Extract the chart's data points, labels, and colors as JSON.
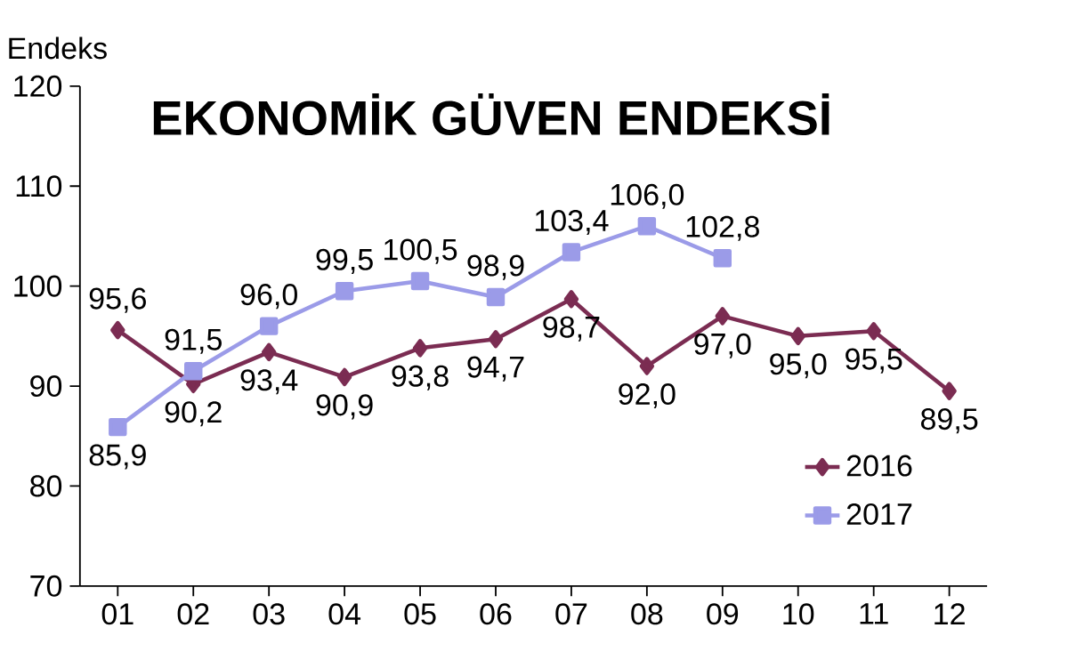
{
  "chart_data": {
    "type": "line",
    "title": "EKONOMİK GÜVEN ENDEKSİ",
    "ylabel": "Endeks",
    "categories": [
      "01",
      "02",
      "03",
      "04",
      "05",
      "06",
      "07",
      "08",
      "09",
      "10",
      "11",
      "12"
    ],
    "series": [
      {
        "name": "2016",
        "color": "#7b2c52",
        "marker": "diamond",
        "values": [
          95.6,
          90.2,
          93.4,
          90.9,
          93.8,
          94.7,
          98.7,
          92.0,
          97.0,
          95.0,
          95.5,
          89.5
        ],
        "value_labels": [
          "95,6",
          "90,2",
          "93,4",
          "90,9",
          "93,8",
          "94,7",
          "98,7",
          "92,0",
          "97,0",
          "95,0",
          "95,5",
          "89,5"
        ]
      },
      {
        "name": "2017",
        "color": "#9b9be8",
        "marker": "square",
        "values": [
          85.9,
          91.5,
          96.0,
          99.5,
          100.5,
          98.9,
          103.4,
          106.0,
          102.8,
          null,
          null,
          null
        ],
        "value_labels": [
          "85,9",
          "91,5",
          "96,0",
          "99,5",
          "100,5",
          "98,9",
          "103,4",
          "106,0",
          "102,8",
          null,
          null,
          null
        ]
      }
    ],
    "ylim": [
      70,
      120
    ],
    "yticks": [
      70,
      80,
      90,
      100,
      110,
      120
    ],
    "grid": false,
    "legend": "bottom right"
  }
}
